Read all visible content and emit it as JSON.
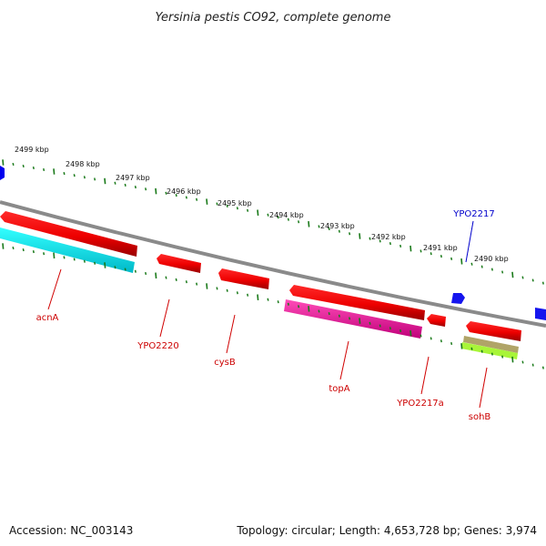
{
  "title": "Yersinia pestis CO92, complete genome",
  "footer": {
    "accession": "Accession: NC_003143",
    "topology": "Topology: circular; Length: 4,653,728 bp; Genes: 3,974"
  },
  "ruler": {
    "unit": "kbp",
    "labels": [
      "2499 kbp",
      "2498 kbp",
      "2497 kbp",
      "2496 kbp",
      "2495 kbp",
      "2494 kbp",
      "2493 kbp",
      "2492 kbp",
      "2491 kbp",
      "2490 kbp"
    ]
  },
  "genes": [
    {
      "name": "acnA",
      "color": "#dd0000"
    },
    {
      "name": "YPO2220",
      "color": "#dd0000"
    },
    {
      "name": "cysB",
      "color": "#dd0000"
    },
    {
      "name": "topA",
      "color": "#dd0000"
    },
    {
      "name": "YPO2217a",
      "color": "#dd0000"
    },
    {
      "name": "sohB",
      "color": "#dd0000"
    },
    {
      "name": "YPO2217",
      "color": "#0000cc"
    }
  ],
  "colors": {
    "forward_strand": "#ff0000",
    "backbone": "#888888",
    "tick_green": "#1a7a1a",
    "gc_cyan": "#00e5e5",
    "gc_magenta": "#e6008a",
    "olive": "#a8a060",
    "lime": "#aaff33",
    "reverse_gene": "#0000ff"
  }
}
